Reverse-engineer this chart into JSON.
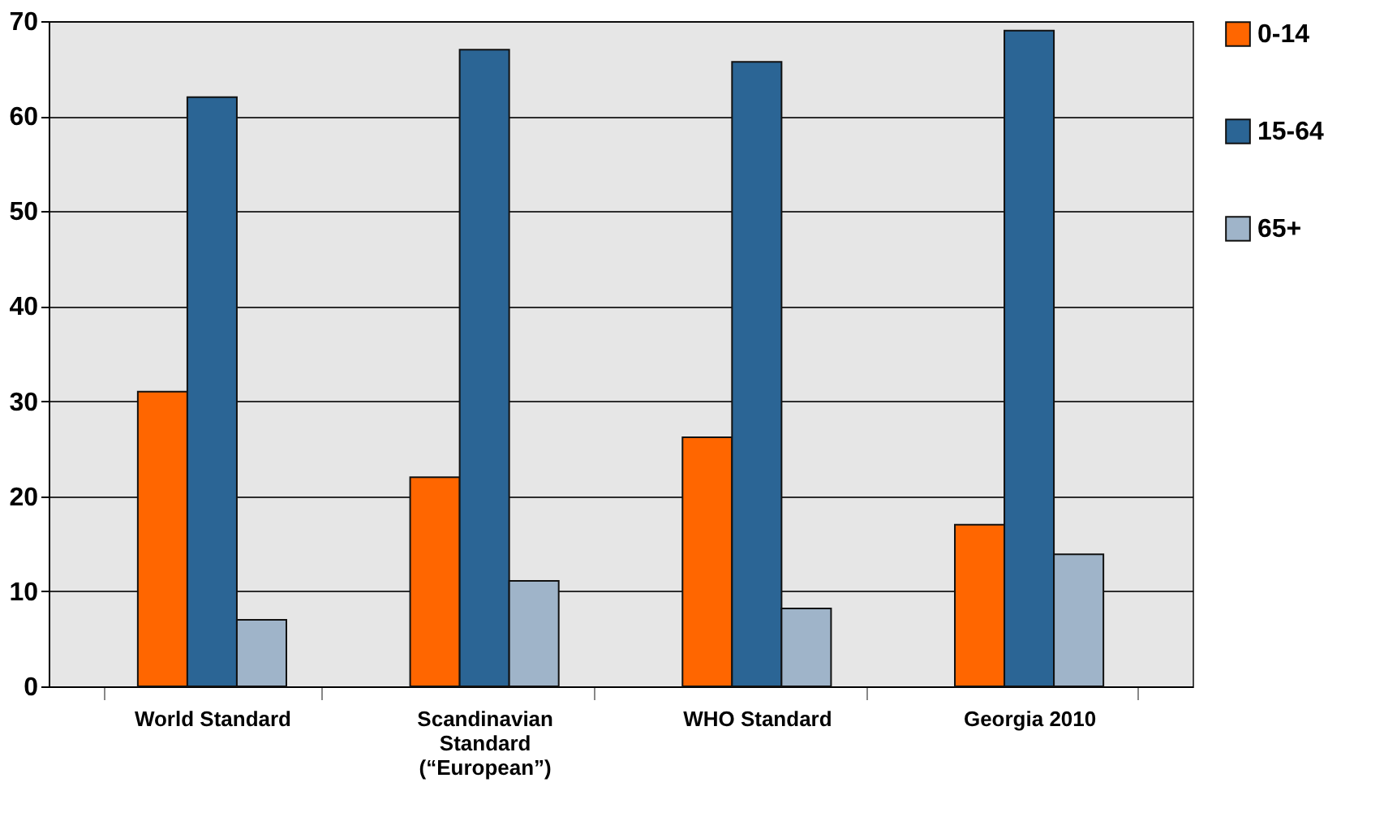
{
  "chart_data": {
    "type": "bar",
    "categories": [
      "World Standard",
      "Scandinavian Standard (“European”)",
      "WHO Standard",
      "Georgia 2010"
    ],
    "series": [
      {
        "name": "0-14",
        "color": "#ff6600",
        "values": [
          31,
          22,
          26.2,
          17
        ]
      },
      {
        "name": "15-64",
        "color": "#2b6595",
        "values": [
          62,
          67,
          65.7,
          69
        ]
      },
      {
        "name": "65+",
        "color": "#9fb4c9",
        "values": [
          7,
          11.1,
          8.2,
          13.9
        ]
      }
    ],
    "ylim": [
      0,
      70
    ],
    "yticks": [
      0,
      10,
      20,
      30,
      40,
      50,
      60,
      70
    ],
    "grid": "y",
    "legend": "right"
  }
}
